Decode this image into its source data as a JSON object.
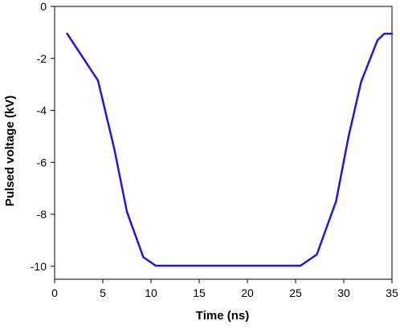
{
  "chart_data": {
    "type": "line",
    "title": "",
    "xlabel": "Time (ns)",
    "ylabel": "Pulsed voltage (kV)",
    "xlim": [
      0,
      35
    ],
    "ylim": [
      -10.5,
      0
    ],
    "xticks": [
      0,
      5,
      10,
      15,
      20,
      25,
      30,
      35
    ],
    "yticks": [
      0,
      -2,
      -4,
      -6,
      -8,
      -10
    ],
    "xtick_labels": [
      "0",
      "5",
      "10",
      "15",
      "20",
      "25",
      "30",
      "35"
    ],
    "ytick_labels": [
      "0",
      "-2",
      "-4",
      "-6",
      "-8",
      "-10"
    ],
    "grid": false,
    "legend": "none",
    "series": [
      {
        "color": "#1a1adb",
        "x": [
          1.3,
          4.5,
          6.2,
          7.5,
          9.2,
          10.5,
          25.5,
          27.2,
          29.2,
          30.5,
          31.8,
          33.5,
          34.2,
          35
        ],
        "y": [
          -1.05,
          -2.85,
          -5.5,
          -7.9,
          -9.65,
          -9.98,
          -9.98,
          -9.55,
          -7.5,
          -5.0,
          -2.9,
          -1.3,
          -1.05,
          -1.05
        ]
      }
    ]
  }
}
